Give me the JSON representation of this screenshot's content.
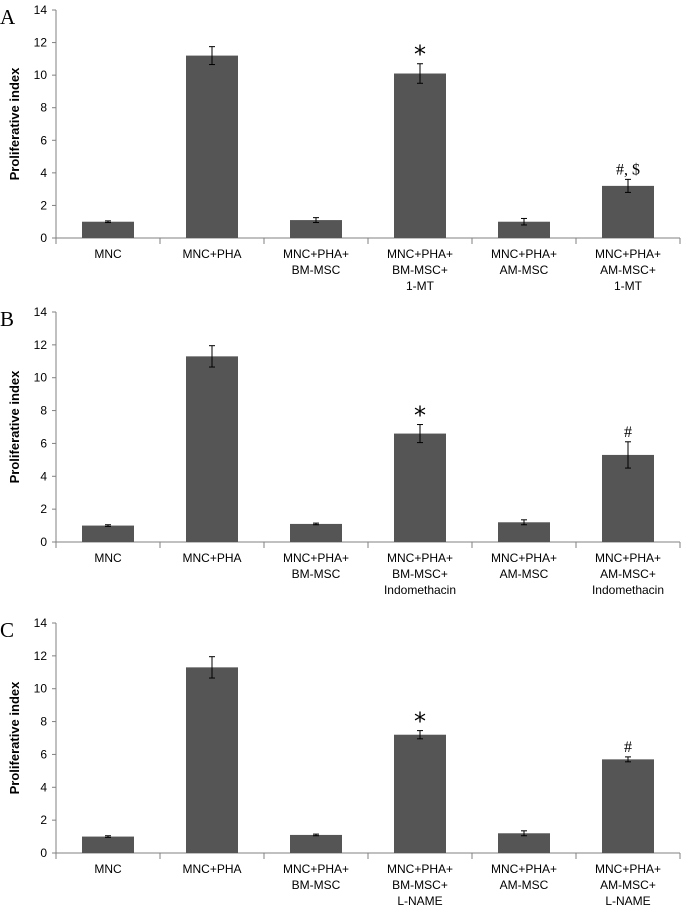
{
  "colors": {
    "bar": "#555555",
    "axis": "#808080",
    "background": "#ffffff"
  },
  "chart_data": [
    {
      "type": "bar",
      "panel_label": "A",
      "ylabel": "Proliferative index",
      "ylim": [
        0,
        14
      ],
      "yticks": [
        "0",
        "2",
        "4",
        "6",
        "8",
        "10",
        "12",
        "14"
      ],
      "categories": [
        [
          "MNC"
        ],
        [
          "MNC+PHA"
        ],
        [
          "MNC+PHA+",
          "BM-MSC"
        ],
        [
          "MNC+PHA+",
          "BM-MSC+",
          "1-MT"
        ],
        [
          "MNC+PHA+",
          "AM-MSC"
        ],
        [
          "MNC+PHA+",
          "AM-MSC+",
          "1-MT"
        ]
      ],
      "values": [
        1.0,
        11.2,
        1.1,
        10.1,
        1.0,
        3.2
      ],
      "errors": [
        0.05,
        0.55,
        0.15,
        0.6,
        0.2,
        0.4
      ],
      "annotations": [
        "",
        "",
        "",
        "*",
        "",
        "#, $"
      ]
    },
    {
      "type": "bar",
      "panel_label": "B",
      "ylabel": "Proliferative index",
      "ylim": [
        0,
        14
      ],
      "yticks": [
        "0",
        "2",
        "4",
        "6",
        "8",
        "10",
        "12",
        "14"
      ],
      "categories": [
        [
          "MNC"
        ],
        [
          "MNC+PHA"
        ],
        [
          "MNC+PHA+",
          "BM-MSC"
        ],
        [
          "MNC+PHA+",
          "BM-MSC+",
          "Indomethacin"
        ],
        [
          "MNC+PHA+",
          "AM-MSC"
        ],
        [
          "MNC+PHA+",
          "AM-MSC+",
          "Indomethacin"
        ]
      ],
      "values": [
        1.0,
        11.3,
        1.1,
        6.6,
        1.2,
        5.3
      ],
      "errors": [
        0.05,
        0.65,
        0.05,
        0.55,
        0.15,
        0.8
      ],
      "annotations": [
        "",
        "",
        "",
        "*",
        "",
        "#"
      ]
    },
    {
      "type": "bar",
      "panel_label": "C",
      "ylabel": "Proliferative index",
      "ylim": [
        0,
        14
      ],
      "yticks": [
        "0",
        "2",
        "4",
        "6",
        "8",
        "10",
        "12",
        "14"
      ],
      "categories": [
        [
          "MNC"
        ],
        [
          "MNC+PHA"
        ],
        [
          "MNC+PHA+",
          "BM-MSC"
        ],
        [
          "MNC+PHA+",
          "BM-MSC+",
          "L-NAME"
        ],
        [
          "MNC+PHA+",
          "AM-MSC"
        ],
        [
          "MNC+PHA+",
          "AM-MSC+",
          "L-NAME"
        ]
      ],
      "values": [
        1.0,
        11.3,
        1.1,
        7.2,
        1.2,
        5.7
      ],
      "errors": [
        0.05,
        0.65,
        0.05,
        0.25,
        0.15,
        0.15
      ],
      "annotations": [
        "",
        "",
        "",
        "*",
        "",
        "#"
      ]
    }
  ]
}
